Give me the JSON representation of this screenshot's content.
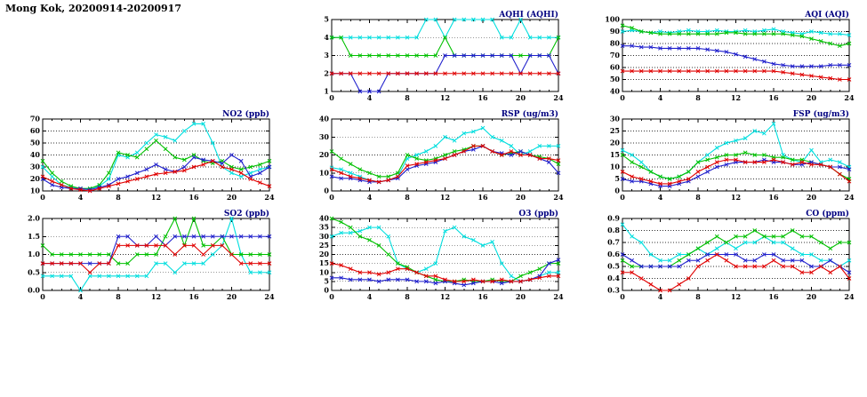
{
  "header": {
    "title": "Mong Kok, 20200914-20200917"
  },
  "colors": {
    "red": "#e00000",
    "green": "#00c000",
    "cyan": "#00dede",
    "blue": "#2020cc",
    "title": "#000080",
    "grid": "#333333",
    "frame": "#000000"
  },
  "x_axis": {
    "min": 0,
    "max": 24,
    "ticks": [
      0,
      4,
      8,
      12,
      16,
      20,
      24
    ],
    "tick_labels": [
      "0",
      "4",
      "8",
      "12",
      "16",
      "20",
      "24"
    ]
  },
  "chart_data": [
    {
      "id": "aqhi",
      "type": "line",
      "title": "AQHI (AQHI)",
      "ylim": [
        1,
        5
      ],
      "yticks": [
        1,
        2,
        3,
        4,
        5
      ],
      "ytick_labels": [
        "1",
        "2",
        "3",
        "4",
        "5"
      ],
      "series": [
        {
          "name": "cyan",
          "color": "cyan",
          "values": [
            4,
            4,
            4,
            4,
            4,
            4,
            4,
            4,
            4,
            4,
            5,
            5,
            4,
            5,
            5,
            5,
            5,
            5,
            4,
            4,
            5,
            4,
            4,
            4,
            4
          ]
        },
        {
          "name": "green",
          "color": "green",
          "values": [
            4,
            4,
            3,
            3,
            3,
            3,
            3,
            3,
            3,
            3,
            3,
            3,
            4,
            3,
            3,
            3,
            3,
            3,
            3,
            3,
            3,
            3,
            3,
            3,
            4
          ]
        },
        {
          "name": "blue",
          "color": "blue",
          "values": [
            2,
            2,
            2,
            1,
            1,
            1,
            2,
            2,
            2,
            2,
            2,
            2,
            3,
            3,
            3,
            3,
            3,
            3,
            3,
            3,
            2,
            3,
            3,
            3,
            2
          ]
        },
        {
          "name": "red",
          "color": "red",
          "values": [
            2,
            2,
            2,
            2,
            2,
            2,
            2,
            2,
            2,
            2,
            2,
            2,
            2,
            2,
            2,
            2,
            2,
            2,
            2,
            2,
            2,
            2,
            2,
            2,
            2
          ]
        }
      ]
    },
    {
      "id": "aqi",
      "type": "line",
      "title": "AQI (AQI)",
      "ylim": [
        40,
        100
      ],
      "yticks": [
        40,
        50,
        60,
        70,
        80,
        90,
        100
      ],
      "ytick_labels": [
        "40",
        "50",
        "60",
        "70",
        "80",
        "90",
        "100"
      ],
      "series": [
        {
          "name": "cyan",
          "color": "cyan",
          "values": [
            90,
            91,
            90,
            89,
            90,
            89,
            90,
            91,
            90,
            90,
            91,
            90,
            90,
            91,
            90,
            91,
            92,
            90,
            89,
            88,
            90,
            89,
            88,
            88,
            87
          ]
        },
        {
          "name": "green",
          "color": "green",
          "values": [
            95,
            93,
            90,
            89,
            88,
            88,
            88,
            88,
            88,
            88,
            88,
            89,
            89,
            88,
            88,
            88,
            88,
            88,
            87,
            86,
            84,
            82,
            80,
            78,
            80
          ]
        },
        {
          "name": "blue",
          "color": "blue",
          "values": [
            78,
            78,
            77,
            77,
            76,
            76,
            76,
            76,
            76,
            75,
            74,
            73,
            71,
            69,
            67,
            65,
            63,
            62,
            61,
            61,
            61,
            61,
            62,
            62,
            62
          ]
        },
        {
          "name": "red",
          "color": "red",
          "values": [
            57,
            57,
            57,
            57,
            57,
            57,
            57,
            57,
            57,
            57,
            57,
            57,
            57,
            57,
            57,
            57,
            57,
            56,
            55,
            54,
            53,
            52,
            51,
            50,
            50
          ]
        }
      ]
    },
    {
      "id": "no2",
      "type": "line",
      "title": "NO2 (ppb)",
      "ylim": [
        10,
        70
      ],
      "yticks": [
        10,
        20,
        30,
        40,
        50,
        60,
        70
      ],
      "ytick_labels": [
        "10",
        "20",
        "30",
        "40",
        "50",
        "60",
        "70"
      ],
      "series": [
        {
          "name": "cyan",
          "color": "cyan",
          "values": [
            30,
            22,
            15,
            13,
            12,
            12,
            14,
            20,
            40,
            38,
            42,
            50,
            57,
            55,
            52,
            60,
            66,
            66,
            50,
            30,
            25,
            22,
            25,
            28,
            30
          ]
        },
        {
          "name": "green",
          "color": "green",
          "values": [
            35,
            25,
            18,
            14,
            12,
            12,
            15,
            25,
            42,
            40,
            38,
            45,
            52,
            45,
            38,
            36,
            40,
            35,
            33,
            35,
            30,
            28,
            30,
            32,
            35
          ]
        },
        {
          "name": "blue",
          "color": "blue",
          "values": [
            20,
            15,
            13,
            12,
            12,
            11,
            13,
            15,
            20,
            22,
            25,
            28,
            32,
            28,
            26,
            30,
            38,
            36,
            35,
            33,
            40,
            35,
            22,
            25,
            30
          ]
        },
        {
          "name": "red",
          "color": "red",
          "values": [
            22,
            18,
            15,
            12,
            11,
            10,
            12,
            14,
            16,
            18,
            20,
            22,
            24,
            25,
            26,
            27,
            30,
            32,
            35,
            30,
            28,
            25,
            20,
            17,
            14
          ]
        }
      ]
    },
    {
      "id": "rsp",
      "type": "line",
      "title": "RSP (ug/m3)",
      "ylim": [
        0,
        40
      ],
      "yticks": [
        0,
        10,
        20,
        30,
        40
      ],
      "ytick_labels": [
        "0",
        "10",
        "20",
        "30",
        "40"
      ],
      "series": [
        {
          "name": "cyan",
          "color": "cyan",
          "values": [
            13,
            12,
            10,
            8,
            6,
            5,
            6,
            8,
            18,
            20,
            22,
            25,
            30,
            28,
            32,
            33,
            35,
            30,
            28,
            25,
            20,
            22,
            25,
            25,
            25
          ]
        },
        {
          "name": "green",
          "color": "green",
          "values": [
            22,
            18,
            15,
            12,
            10,
            8,
            8,
            10,
            20,
            18,
            17,
            18,
            20,
            22,
            23,
            25,
            25,
            22,
            20,
            21,
            22,
            20,
            19,
            18,
            15
          ]
        },
        {
          "name": "blue",
          "color": "blue",
          "values": [
            8,
            7,
            7,
            6,
            5,
            5,
            6,
            7,
            12,
            14,
            15,
            16,
            18,
            20,
            22,
            23,
            25,
            22,
            21,
            20,
            22,
            20,
            18,
            16,
            10
          ]
        },
        {
          "name": "red",
          "color": "red",
          "values": [
            12,
            10,
            8,
            7,
            6,
            5,
            6,
            8,
            14,
            15,
            16,
            17,
            18,
            20,
            22,
            25,
            25,
            22,
            20,
            22,
            20,
            20,
            18,
            18,
            17
          ]
        }
      ]
    },
    {
      "id": "fsp",
      "type": "line",
      "title": "FSP (ug/m3)",
      "ylim": [
        0,
        30
      ],
      "yticks": [
        0,
        5,
        10,
        15,
        20,
        25,
        30
      ],
      "ytick_labels": [
        "0",
        "5",
        "10",
        "15",
        "20",
        "25",
        "30"
      ],
      "series": [
        {
          "name": "cyan",
          "color": "cyan",
          "values": [
            17,
            15,
            12,
            8,
            6,
            5,
            6,
            8,
            12,
            15,
            18,
            20,
            21,
            22,
            25,
            24,
            28,
            15,
            13,
            12,
            17,
            12,
            13,
            12,
            10
          ]
        },
        {
          "name": "green",
          "color": "green",
          "values": [
            15,
            12,
            10,
            8,
            6,
            5,
            6,
            8,
            12,
            13,
            14,
            15,
            15,
            16,
            15,
            15,
            14,
            14,
            13,
            13,
            12,
            11,
            10,
            7,
            5
          ]
        },
        {
          "name": "blue",
          "color": "blue",
          "values": [
            5,
            4,
            4,
            3,
            2,
            2,
            3,
            4,
            6,
            8,
            10,
            11,
            12,
            12,
            12,
            13,
            12,
            12,
            11,
            11,
            12,
            11,
            10,
            10,
            9
          ]
        },
        {
          "name": "red",
          "color": "red",
          "values": [
            8,
            6,
            5,
            4,
            3,
            3,
            4,
            5,
            8,
            10,
            12,
            13,
            13,
            12,
            12,
            12,
            13,
            12,
            11,
            12,
            11,
            11,
            10,
            7,
            4
          ]
        }
      ]
    },
    {
      "id": "so2",
      "type": "line",
      "title": "SO2 (ppb)",
      "ylim": [
        0,
        2
      ],
      "yticks": [
        0,
        0.5,
        1,
        1.5,
        2
      ],
      "ytick_labels": [
        "0.0",
        "0.5",
        "1.0",
        "1.5",
        "2.0"
      ],
      "series": [
        {
          "name": "cyan",
          "color": "cyan",
          "values": [
            0.4,
            0.4,
            0.4,
            0.4,
            0.0,
            0.4,
            0.4,
            0.4,
            0.4,
            0.4,
            0.4,
            0.4,
            0.75,
            0.75,
            0.5,
            0.75,
            0.75,
            0.75,
            1.0,
            1.25,
            2.0,
            1.0,
            0.5,
            0.5,
            0.5
          ]
        },
        {
          "name": "green",
          "color": "green",
          "values": [
            1.25,
            1.0,
            1.0,
            1.0,
            1.0,
            1.0,
            1.0,
            1.0,
            0.75,
            0.75,
            1.0,
            1.0,
            1.0,
            1.5,
            2.0,
            1.25,
            2.0,
            1.25,
            1.25,
            1.5,
            1.0,
            1.0,
            1.0,
            1.0,
            1.0
          ]
        },
        {
          "name": "blue",
          "color": "blue",
          "values": [
            0.75,
            0.75,
            0.75,
            0.75,
            0.75,
            0.75,
            0.75,
            0.75,
            1.5,
            1.5,
            1.25,
            1.25,
            1.5,
            1.25,
            1.5,
            1.5,
            1.5,
            1.5,
            1.5,
            1.5,
            1.5,
            1.5,
            1.5,
            1.5,
            1.5
          ]
        },
        {
          "name": "red",
          "color": "red",
          "values": [
            0.75,
            0.75,
            0.75,
            0.75,
            0.75,
            0.5,
            0.75,
            0.75,
            1.25,
            1.25,
            1.25,
            1.25,
            1.25,
            1.25,
            1.0,
            1.25,
            1.25,
            1.0,
            1.25,
            1.25,
            1.0,
            0.75,
            0.75,
            0.75,
            0.75
          ]
        }
      ]
    },
    {
      "id": "o3",
      "type": "line",
      "title": "O3 (ppb)",
      "ylim": [
        0,
        40
      ],
      "yticks": [
        0,
        5,
        10,
        15,
        20,
        25,
        30,
        35,
        40
      ],
      "ytick_labels": [
        "0",
        "5",
        "10",
        "15",
        "20",
        "25",
        "30",
        "35",
        "40"
      ],
      "series": [
        {
          "name": "cyan",
          "color": "cyan",
          "values": [
            30,
            32,
            32,
            33,
            35,
            35,
            30,
            15,
            12,
            10,
            12,
            15,
            33,
            35,
            30,
            28,
            25,
            27,
            15,
            8,
            5,
            6,
            8,
            10,
            10
          ]
        },
        {
          "name": "green",
          "color": "green",
          "values": [
            40,
            38,
            35,
            30,
            28,
            25,
            20,
            15,
            13,
            10,
            8,
            6,
            5,
            5,
            6,
            5,
            5,
            6,
            5,
            5,
            8,
            10,
            12,
            15,
            15
          ]
        },
        {
          "name": "blue",
          "color": "blue",
          "values": [
            7,
            7,
            6,
            6,
            6,
            5,
            6,
            6,
            6,
            5,
            5,
            4,
            5,
            4,
            3,
            4,
            5,
            5,
            4,
            5,
            5,
            6,
            8,
            15,
            17
          ]
        },
        {
          "name": "red",
          "color": "red",
          "values": [
            15,
            14,
            12,
            10,
            10,
            9,
            10,
            12,
            12,
            10,
            8,
            8,
            6,
            5,
            5,
            6,
            5,
            5,
            6,
            5,
            5,
            6,
            7,
            8,
            8
          ]
        }
      ]
    },
    {
      "id": "co",
      "type": "line",
      "title": "CO (ppm)",
      "ylim": [
        0.3,
        0.9
      ],
      "yticks": [
        0.3,
        0.4,
        0.5,
        0.6,
        0.7,
        0.8,
        0.9
      ],
      "ytick_labels": [
        "0.3",
        "0.4",
        "0.5",
        "0.6",
        "0.7",
        "0.8",
        "0.9"
      ],
      "series": [
        {
          "name": "cyan",
          "color": "cyan",
          "values": [
            0.85,
            0.75,
            0.7,
            0.6,
            0.55,
            0.55,
            0.6,
            0.6,
            0.65,
            0.6,
            0.65,
            0.7,
            0.65,
            0.7,
            0.7,
            0.75,
            0.7,
            0.7,
            0.65,
            0.6,
            0.6,
            0.55,
            0.55,
            0.5,
            0.55
          ]
        },
        {
          "name": "green",
          "color": "green",
          "values": [
            0.55,
            0.5,
            0.5,
            0.5,
            0.5,
            0.5,
            0.55,
            0.6,
            0.65,
            0.7,
            0.75,
            0.7,
            0.75,
            0.75,
            0.8,
            0.75,
            0.75,
            0.75,
            0.8,
            0.75,
            0.75,
            0.7,
            0.65,
            0.7,
            0.7
          ]
        },
        {
          "name": "blue",
          "color": "blue",
          "values": [
            0.6,
            0.55,
            0.5,
            0.5,
            0.5,
            0.5,
            0.5,
            0.55,
            0.55,
            0.6,
            0.6,
            0.6,
            0.6,
            0.55,
            0.55,
            0.6,
            0.6,
            0.55,
            0.55,
            0.55,
            0.5,
            0.5,
            0.55,
            0.5,
            0.45
          ]
        },
        {
          "name": "red",
          "color": "red",
          "values": [
            0.45,
            0.45,
            0.4,
            0.35,
            0.3,
            0.3,
            0.35,
            0.4,
            0.5,
            0.55,
            0.6,
            0.55,
            0.5,
            0.5,
            0.5,
            0.5,
            0.55,
            0.5,
            0.5,
            0.45,
            0.45,
            0.5,
            0.45,
            0.5,
            0.4
          ]
        }
      ]
    }
  ]
}
